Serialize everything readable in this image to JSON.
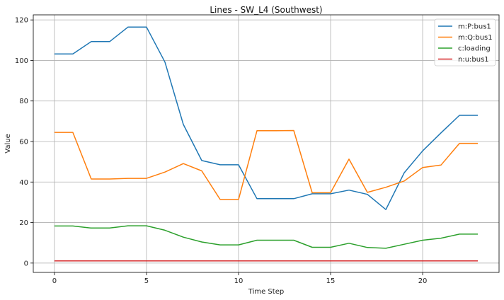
{
  "chart_data": {
    "type": "line",
    "title": "Lines - SW_L4 (Southwest)",
    "xlabel": "Time Step",
    "ylabel": "Value",
    "xlim": [
      -1.15,
      24.15
    ],
    "ylim": [
      -4.6,
      122.5
    ],
    "xticks": [
      0,
      5,
      10,
      15,
      20
    ],
    "yticks": [
      0,
      20,
      40,
      60,
      80,
      100,
      120
    ],
    "grid": true,
    "legend_position": "top-right",
    "x": [
      0,
      1,
      2,
      3,
      4,
      5,
      6,
      7,
      8,
      9,
      10,
      11,
      12,
      13,
      14,
      15,
      16,
      17,
      18,
      19,
      20,
      21,
      22,
      23
    ],
    "series": [
      {
        "name": "m:P:bus1",
        "color": "#1f77b4",
        "values": [
          103.2,
          103.2,
          109.3,
          109.3,
          116.5,
          116.5,
          99.2,
          68.4,
          50.6,
          48.5,
          48.5,
          31.8,
          31.8,
          31.8,
          34.2,
          34.2,
          36.0,
          33.9,
          26.4,
          44.6,
          55.4,
          64.3,
          72.9,
          72.9
        ]
      },
      {
        "name": "m:Q:bus1",
        "color": "#ff7f0e",
        "values": [
          64.5,
          64.5,
          41.5,
          41.5,
          41.8,
          41.8,
          44.9,
          49.1,
          45.5,
          31.4,
          31.4,
          65.3,
          65.3,
          65.4,
          34.7,
          34.7,
          51.3,
          34.9,
          37.4,
          40.5,
          47.2,
          48.4,
          59.1,
          59.1
        ]
      },
      {
        "name": "c:loading",
        "color": "#2ca02c",
        "values": [
          18.3,
          18.3,
          17.3,
          17.3,
          18.4,
          18.4,
          16.2,
          12.8,
          10.4,
          9.0,
          9.0,
          11.3,
          11.3,
          11.3,
          7.8,
          7.8,
          9.8,
          7.7,
          7.3,
          9.3,
          11.3,
          12.3,
          14.3,
          14.3
        ]
      },
      {
        "name": "n:u:bus1",
        "color": "#d62728",
        "values": [
          1.1,
          1.1,
          1.1,
          1.1,
          1.1,
          1.1,
          1.1,
          1.1,
          1.1,
          1.1,
          1.1,
          1.1,
          1.1,
          1.1,
          1.1,
          1.1,
          1.1,
          1.1,
          1.1,
          1.1,
          1.1,
          1.1,
          1.1,
          1.1
        ]
      }
    ]
  }
}
